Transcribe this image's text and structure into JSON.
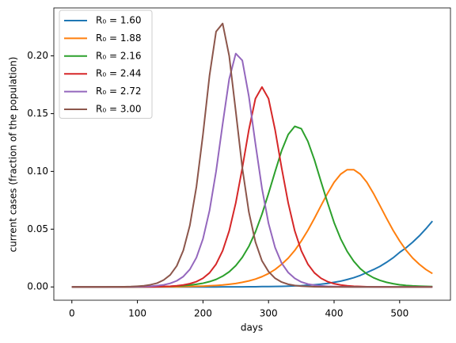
{
  "chart_data": {
    "type": "line",
    "x_label": "days",
    "y_label": "current cases (fraction of the population)",
    "x": [
      0,
      10,
      20,
      30,
      40,
      50,
      60,
      70,
      80,
      90,
      100,
      110,
      120,
      130,
      140,
      150,
      160,
      170,
      180,
      190,
      200,
      210,
      220,
      230,
      240,
      250,
      260,
      270,
      280,
      290,
      300,
      310,
      320,
      330,
      340,
      350,
      360,
      370,
      380,
      390,
      400,
      410,
      420,
      430,
      440,
      450,
      460,
      470,
      480,
      490,
      500,
      510,
      520,
      530,
      540,
      550
    ],
    "series": [
      {
        "name": "R₀ = 1.60",
        "color": "#1f77b4",
        "values": [
          0,
          0,
          0,
          0,
          0,
          0,
          0,
          0,
          0,
          0,
          0,
          0,
          0,
          0,
          0,
          0,
          0,
          0,
          0,
          0,
          0,
          0,
          0,
          0.0001,
          0.0001,
          0.0001,
          0.0001,
          0.0002,
          0.0002,
          0.0003,
          0.0003,
          0.0004,
          0.0005,
          0.0007,
          0.0009,
          0.0011,
          0.0015,
          0.0019,
          0.0024,
          0.0031,
          0.004,
          0.005,
          0.0064,
          0.008,
          0.01,
          0.0125,
          0.015,
          0.0178,
          0.0213,
          0.0252,
          0.0299,
          0.034,
          0.0388,
          0.0442,
          0.0503,
          0.057
        ]
      },
      {
        "name": "R₀ = 1.88",
        "color": "#ff7f0e",
        "values": [
          0,
          0,
          0,
          0,
          0,
          0,
          0,
          0,
          0,
          0,
          0,
          0.0001,
          0.0001,
          0.0001,
          0.0001,
          0.0002,
          0.0002,
          0.0003,
          0.0004,
          0.0006,
          0.0007,
          0.001,
          0.0013,
          0.0017,
          0.0023,
          0.003,
          0.004,
          0.0052,
          0.0068,
          0.0089,
          0.0116,
          0.0151,
          0.0196,
          0.0249,
          0.0316,
          0.0398,
          0.049,
          0.0594,
          0.0703,
          0.081,
          0.0906,
          0.0976,
          0.1015,
          0.1015,
          0.0976,
          0.0906,
          0.081,
          0.0703,
          0.0594,
          0.049,
          0.0398,
          0.0316,
          0.0249,
          0.0196,
          0.0151,
          0.0116
        ]
      },
      {
        "name": "R₀ = 2.16",
        "color": "#2ca02c",
        "values": [
          0,
          0,
          0,
          0,
          0,
          0,
          0,
          0,
          0,
          0,
          0.0001,
          0.0001,
          0.0002,
          0.0003,
          0.0004,
          0.0005,
          0.0008,
          0.0011,
          0.0016,
          0.0023,
          0.0032,
          0.0046,
          0.0065,
          0.0093,
          0.0131,
          0.0184,
          0.0256,
          0.0351,
          0.0476,
          0.063,
          0.0809,
          0.0998,
          0.118,
          0.132,
          0.139,
          0.137,
          0.126,
          0.11,
          0.0912,
          0.073,
          0.0557,
          0.0417,
          0.0307,
          0.0222,
          0.0158,
          0.0112,
          0.008,
          0.0057,
          0.004,
          0.0028,
          0.0019,
          0.0013,
          0.0009,
          0.0007,
          0.0005,
          0.0003
        ]
      },
      {
        "name": "R₀ = 2.44",
        "color": "#d62728",
        "values": [
          0,
          0,
          0,
          0,
          0,
          0,
          0,
          0,
          0,
          0,
          0.0001,
          0.0001,
          0.0001,
          0.0002,
          0.0004,
          0.0006,
          0.001,
          0.0017,
          0.0028,
          0.0046,
          0.0075,
          0.0122,
          0.0197,
          0.0313,
          0.0485,
          0.0727,
          0.103,
          0.136,
          0.163,
          0.173,
          0.163,
          0.136,
          0.103,
          0.0727,
          0.0485,
          0.0313,
          0.0197,
          0.0122,
          0.0075,
          0.0046,
          0.0028,
          0.0017,
          0.001,
          0.0006,
          0.0004,
          0.0002,
          0.0001,
          0.0001,
          0.0001,
          0,
          0,
          0,
          0,
          0,
          0,
          0
        ]
      },
      {
        "name": "R₀ = 2.72",
        "color": "#9467bd",
        "values": [
          0,
          0,
          0,
          0,
          0,
          0,
          0,
          0,
          0.0001,
          0.0001,
          0.0002,
          0.0004,
          0.0006,
          0.0011,
          0.0018,
          0.0031,
          0.0053,
          0.009,
          0.0152,
          0.0254,
          0.0416,
          0.0661,
          0.1,
          0.141,
          0.18,
          0.202,
          0.196,
          0.165,
          0.124,
          0.0853,
          0.055,
          0.0341,
          0.0206,
          0.0125,
          0.0074,
          0.0043,
          0.0025,
          0.0015,
          0.0009,
          0.0005,
          0.0003,
          0.0002,
          0.0001,
          0,
          0,
          0,
          0,
          0,
          0,
          0,
          0,
          0,
          0,
          0,
          0,
          0
        ]
      },
      {
        "name": "R₀ = 3.00",
        "color": "#8c564b",
        "values": [
          0,
          0,
          0,
          0,
          0,
          0,
          0.0001,
          0.0001,
          0.0002,
          0.0003,
          0.0006,
          0.001,
          0.0019,
          0.0033,
          0.006,
          0.0104,
          0.0182,
          0.0316,
          0.0533,
          0.0867,
          0.132,
          0.183,
          0.221,
          0.228,
          0.2,
          0.152,
          0.103,
          0.0648,
          0.0389,
          0.0226,
          0.0133,
          0.0075,
          0.0042,
          0.0023,
          0.0013,
          0.0007,
          0.0004,
          0.0002,
          0.0001,
          0,
          0,
          0,
          0,
          0,
          0,
          0,
          0,
          0,
          0,
          0,
          0,
          0,
          0,
          0,
          0,
          0
        ]
      }
    ],
    "xlim": [
      -27.5,
      577.5
    ],
    "xticks": [
      0,
      100,
      200,
      300,
      400,
      500
    ],
    "ylim": [
      -0.0115,
      0.2415
    ],
    "yticks": [
      {
        "value": 0,
        "label": "0.00"
      },
      {
        "value": 0.05,
        "label": "0.05"
      },
      {
        "value": 0.1,
        "label": "0.10"
      },
      {
        "value": 0.15,
        "label": "0.15"
      },
      {
        "value": 0.2,
        "label": "0.20"
      }
    ],
    "grid": false,
    "legend": "upper-left"
  }
}
